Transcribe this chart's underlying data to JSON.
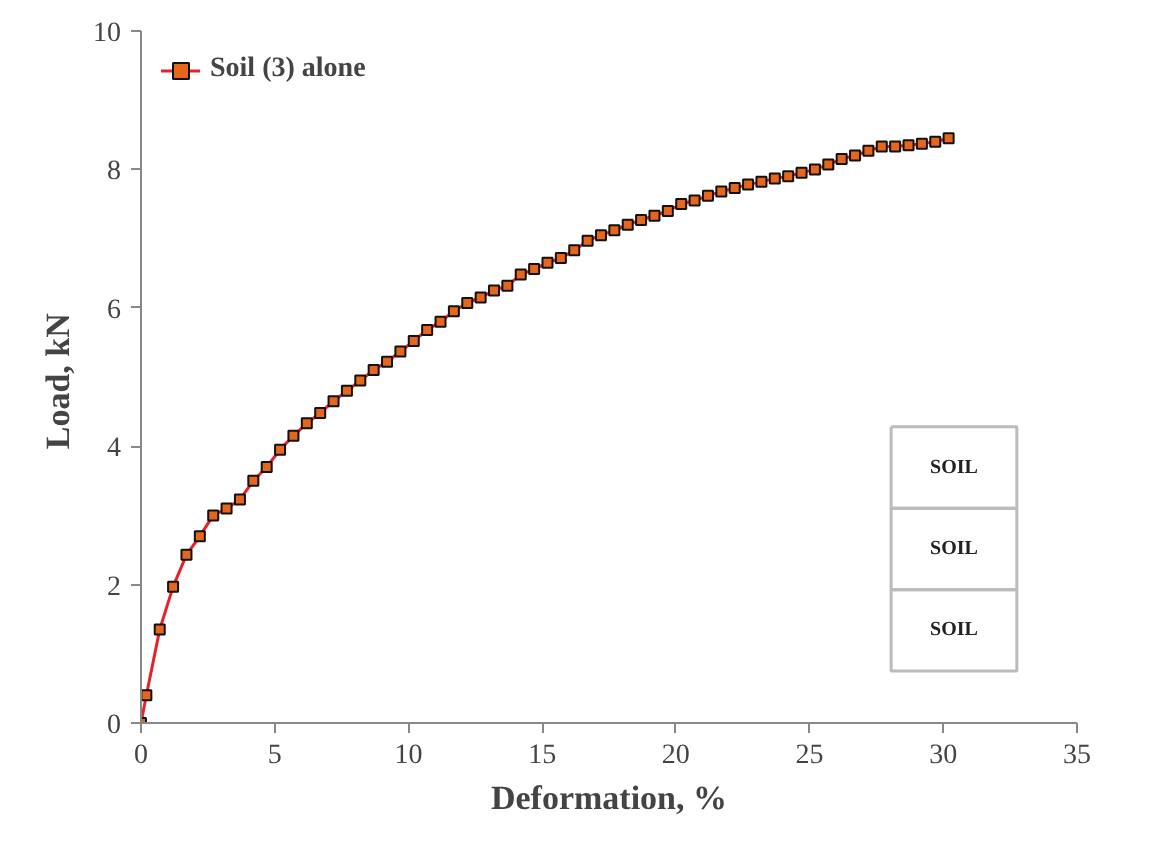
{
  "chart_data": {
    "type": "line",
    "xlabel": "Deformation, %",
    "ylabel": "Load,  kN",
    "x": [
      0,
      0.2,
      0.7,
      1.2,
      1.7,
      2.2,
      2.7,
      3.2,
      3.7,
      4.2,
      4.7,
      5.2,
      5.7,
      6.2,
      6.7,
      7.2,
      7.7,
      8.2,
      8.7,
      9.2,
      9.7,
      10.2,
      10.7,
      11.2,
      11.7,
      12.2,
      12.7,
      13.2,
      13.7,
      14.2,
      14.7,
      15.2,
      15.7,
      16.2,
      16.7,
      17.2,
      17.7,
      18.2,
      18.7,
      19.2,
      19.7,
      20.2,
      20.7,
      21.2,
      21.7,
      22.2,
      22.7,
      23.2,
      23.7,
      24.2,
      24.7,
      25.2,
      25.7,
      26.2,
      26.7,
      27.2,
      27.7,
      28.2,
      28.7,
      29.2,
      29.7,
      30.2
    ],
    "series": [
      {
        "name": "Soil (3) alone",
        "color": "#e8202a",
        "values": [
          0,
          0.4,
          1.35,
          1.97,
          2.43,
          2.7,
          3.0,
          3.1,
          3.23,
          3.5,
          3.7,
          3.95,
          4.15,
          4.33,
          4.48,
          4.65,
          4.8,
          4.95,
          5.1,
          5.22,
          5.37,
          5.52,
          5.68,
          5.8,
          5.95,
          6.07,
          6.15,
          6.25,
          6.32,
          6.48,
          6.56,
          6.65,
          6.72,
          6.83,
          6.97,
          7.05,
          7.12,
          7.2,
          7.27,
          7.33,
          7.4,
          7.5,
          7.55,
          7.62,
          7.68,
          7.73,
          7.78,
          7.82,
          7.87,
          7.9,
          7.95,
          8.0,
          8.07,
          8.15,
          8.2,
          8.27,
          8.33,
          8.33,
          8.35,
          8.37,
          8.4,
          8.45
        ]
      }
    ],
    "marker": "square",
    "xlim": [
      0,
      35
    ],
    "ylim": [
      0,
      10
    ],
    "xticks": [
      0,
      5,
      10,
      15,
      20,
      25,
      30,
      35
    ],
    "yticks": [
      0,
      2,
      4,
      6,
      8,
      10
    ],
    "grid": false,
    "legend": "top left",
    "annotations": [
      "SOIL",
      "SOIL",
      "SOIL"
    ]
  }
}
